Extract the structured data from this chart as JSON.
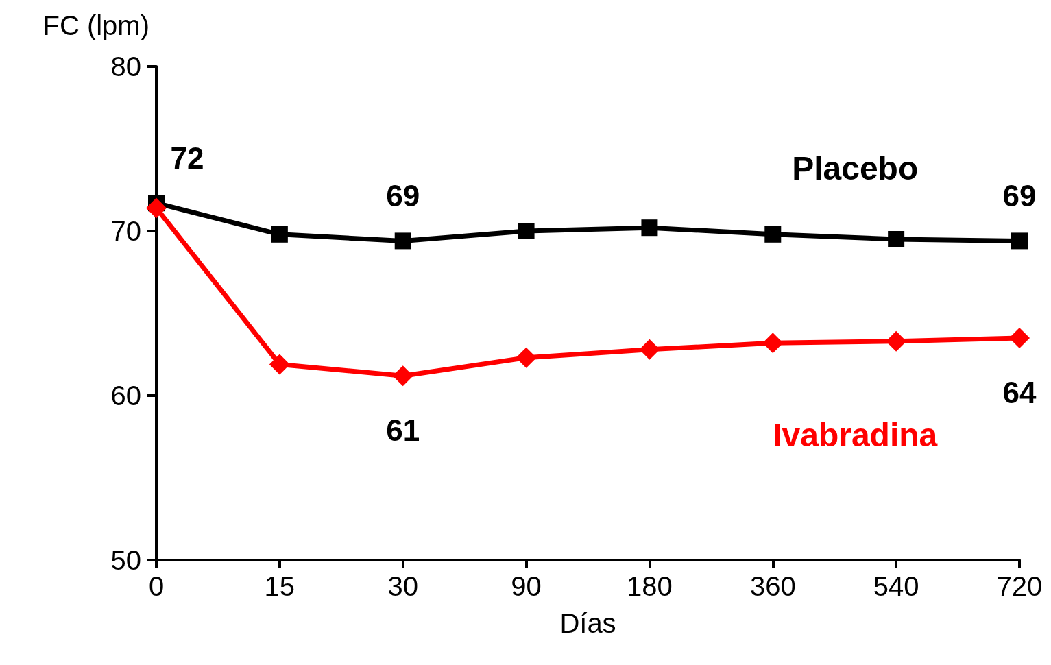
{
  "chart_data": {
    "type": "line",
    "ylabel": "FC (lpm)",
    "xlabel": "Días",
    "categories": [
      "0",
      "15",
      "30",
      "90",
      "180",
      "360",
      "540",
      "720"
    ],
    "series": [
      {
        "name": "Placebo",
        "color": "#000000",
        "marker": "square",
        "values": [
          71.7,
          69.8,
          69.4,
          70.0,
          70.2,
          69.8,
          69.5,
          69.4
        ],
        "value_labels": [
          "72",
          null,
          "69",
          null,
          null,
          null,
          null,
          "69"
        ]
      },
      {
        "name": "Ivabradina",
        "color": "#ff0000",
        "marker": "diamond",
        "values": [
          71.4,
          61.9,
          61.2,
          62.3,
          62.8,
          63.2,
          63.3,
          63.5
        ],
        "value_labels": [
          null,
          null,
          "61",
          null,
          null,
          null,
          null,
          "64"
        ]
      }
    ],
    "ylim": [
      50,
      80
    ],
    "yticks": [
      50,
      60,
      70,
      80
    ],
    "grid": false,
    "legend": false,
    "line_style": "solid"
  }
}
